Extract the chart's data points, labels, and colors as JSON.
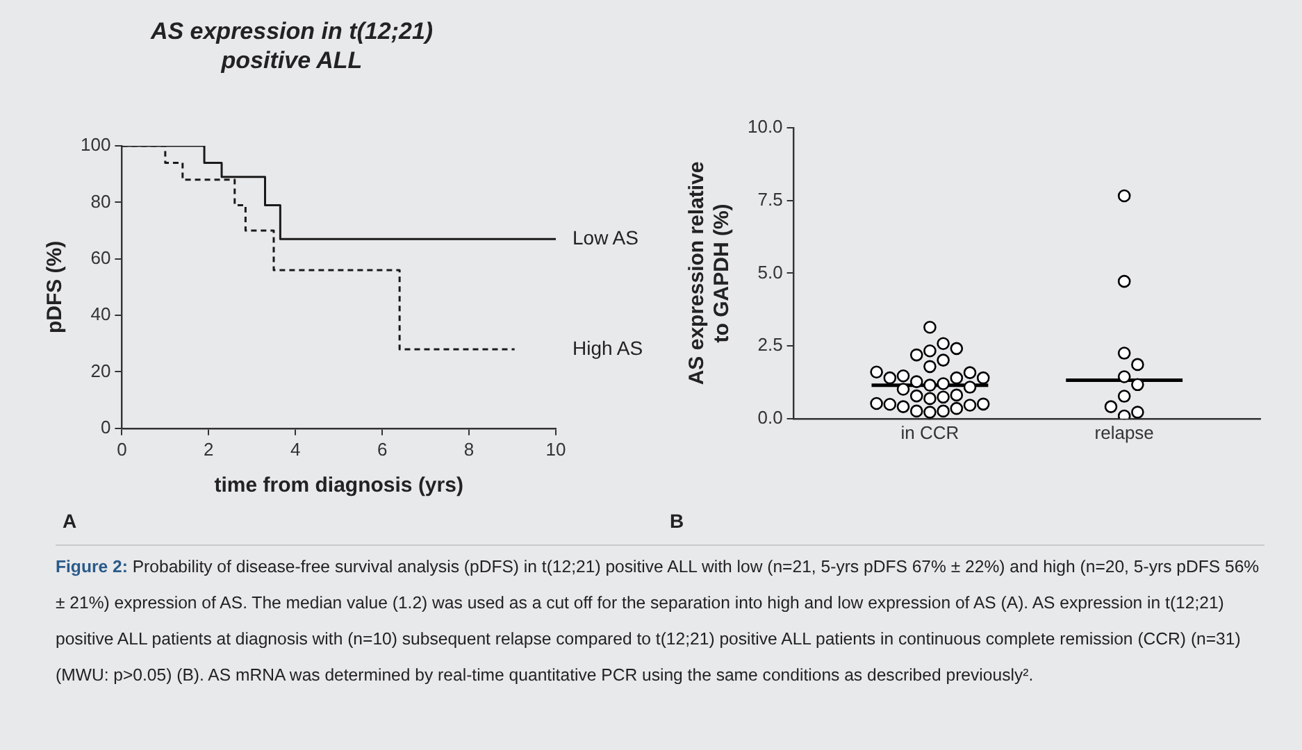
{
  "chart_data": [
    {
      "type": "step",
      "title": "AS expression in t(12;21) positive ALL",
      "xlabel": "time from diagnosis (yrs)",
      "ylabel": "pDFS (%)",
      "xlim": [
        0,
        10
      ],
      "xticks": [
        0,
        2,
        4,
        6,
        8,
        10
      ],
      "ylim": [
        0,
        100
      ],
      "yticks": [
        0,
        20,
        40,
        60,
        80,
        100
      ],
      "marker": "none",
      "grid": false,
      "legend": false,
      "annotations": [
        "A"
      ],
      "series": [
        {
          "name": "Low AS",
          "color": "#1a1a1a",
          "line_style": "solid",
          "x": [
            0,
            1.9,
            2.3,
            3.3,
            3.65,
            10
          ],
          "values": [
            100,
            94,
            89,
            79,
            67,
            67
          ]
        },
        {
          "name": "High AS",
          "color": "#1a1a1a",
          "line_style": "dashed",
          "x": [
            0,
            1.0,
            1.4,
            2.6,
            2.85,
            3.5,
            6.4,
            9.05
          ],
          "values": [
            100,
            94,
            88,
            79,
            70,
            56,
            28,
            28
          ]
        }
      ]
    },
    {
      "type": "scatter",
      "ylabel": "AS expression relative to GAPDH (%)",
      "categories": [
        "in CCR",
        "relapse"
      ],
      "ylim": [
        0,
        10
      ],
      "yticks": [
        {
          "value": 0,
          "label": "0.0"
        },
        {
          "value": 2.5,
          "label": "2.5"
        },
        {
          "value": 5,
          "label": "5.0"
        },
        {
          "value": 7.5,
          "label": "7.5"
        },
        {
          "value": 10,
          "label": "10.0"
        }
      ],
      "marker": "circle",
      "grid": false,
      "legend": false,
      "annotations": [
        "B"
      ],
      "series": [
        {
          "color": "#000000",
          "x": [
            "in CCR",
            "in CCR",
            "in CCR",
            "in CCR",
            "in CCR",
            "in CCR",
            "in CCR",
            "in CCR",
            "in CCR",
            "in CCR",
            "in CCR",
            "in CCR",
            "in CCR",
            "in CCR",
            "in CCR",
            "in CCR",
            "in CCR",
            "in CCR",
            "in CCR",
            "in CCR",
            "in CCR",
            "in CCR",
            "in CCR",
            "in CCR",
            "in CCR",
            "in CCR",
            "in CCR",
            "in CCR",
            "in CCR",
            "in CCR",
            "in CCR"
          ],
          "values": [
            3.14,
            2.41,
            2.19,
            2.33,
            2.58,
            2.01,
            1.79,
            1.6,
            1.47,
            1.4,
            1.27,
            1.15,
            1.2,
            1.4,
            1.4,
            1.58,
            1.08,
            1.01,
            0.81,
            0.74,
            0.69,
            0.78,
            0.52,
            0.49,
            0.41,
            0.26,
            0.22,
            0.26,
            0.35,
            0.46,
            0.5
          ]
        },
        {
          "color": "#000000",
          "x": [
            "relapse",
            "relapse",
            "relapse",
            "relapse",
            "relapse",
            "relapse",
            "relapse",
            "relapse",
            "relapse",
            "relapse"
          ],
          "values": [
            7.66,
            4.72,
            2.25,
            1.86,
            1.44,
            1.17,
            0.77,
            0.41,
            0.22,
            0.09
          ]
        }
      ],
      "ref_lines": [
        {
          "axis": "y",
          "value": 1.15,
          "color": "#000000"
        },
        {
          "axis": "y",
          "value": 1.32,
          "color": "#000000"
        }
      ]
    },
    {
      "type": "other",
      "annotations": [
        "Figure 2:",
        "Probability of disease-free survival analysis (pDFS) in t(12;21) positive ALL with low (n=21, 5-yrs pDFS 67% ± 22%) and high (n=20, 5-yrs pDFS 56% ± 21%) expression of AS. The median value (1.2) was used as a cut off for the separation into high and low expression of AS (A). AS expression in t(12;21) positive ALL patients at diagnosis with (n=10) subsequent relapse compared to t(12;21) positive ALL patients in continuous complete remission (CCR) (n=31) (MWU: p>0.05) (B). AS mRNA was determined by real-time quantitative PCR using the same conditions as described previously²."
      ]
    }
  ]
}
